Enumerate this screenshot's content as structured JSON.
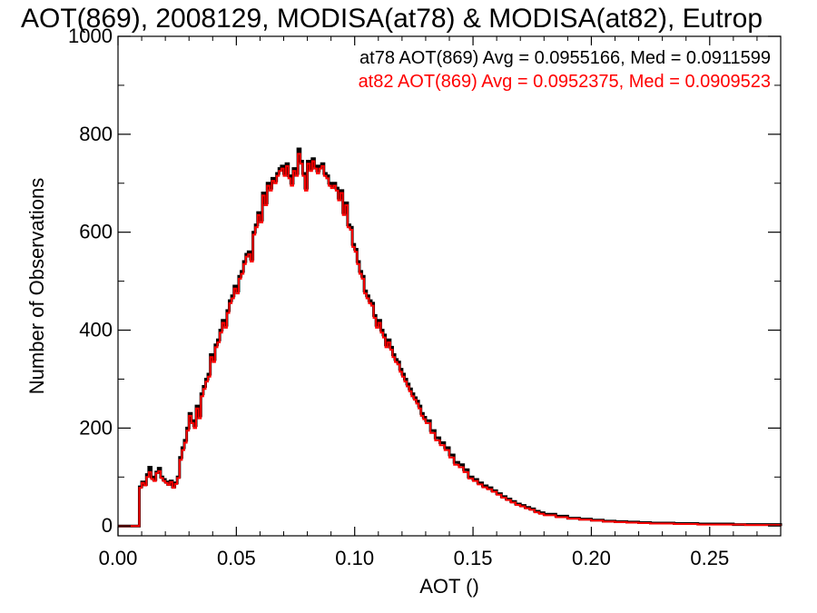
{
  "chart_data": {
    "type": "line",
    "step": true,
    "title": "AOT(869), 2008129, MODISA(at78) & MODISA(at82), Eutrop",
    "xlabel": "AOT ()",
    "ylabel": "Number of Observations",
    "xlim": [
      0.0,
      0.28
    ],
    "ylim": [
      -20,
      1000
    ],
    "xticks": [
      "0.00",
      "0.05",
      "0.10",
      "0.15",
      "0.20",
      "0.25"
    ],
    "yticks": [
      "0",
      "200",
      "400",
      "600",
      "800",
      "1000"
    ],
    "grid": false,
    "legend_position": "top-right",
    "legend": [
      "at78 AOT(869) Avg = 0.0955166, Med = 0.0911599",
      "at82 AOT(869) Avg = 0.0952375, Med = 0.0909523"
    ],
    "series": [
      {
        "color": "#000000",
        "x": [
          0.0,
          0.004,
          0.008,
          0.009,
          0.01,
          0.011,
          0.012,
          0.013,
          0.014,
          0.015,
          0.016,
          0.017,
          0.018,
          0.019,
          0.02,
          0.021,
          0.022,
          0.023,
          0.024,
          0.025,
          0.026,
          0.027,
          0.028,
          0.029,
          0.03,
          0.031,
          0.032,
          0.033,
          0.034,
          0.035,
          0.036,
          0.037,
          0.038,
          0.039,
          0.04,
          0.041,
          0.042,
          0.043,
          0.044,
          0.045,
          0.046,
          0.047,
          0.048,
          0.049,
          0.05,
          0.051,
          0.052,
          0.053,
          0.054,
          0.055,
          0.056,
          0.057,
          0.058,
          0.059,
          0.06,
          0.061,
          0.062,
          0.063,
          0.064,
          0.065,
          0.066,
          0.067,
          0.068,
          0.069,
          0.07,
          0.071,
          0.072,
          0.073,
          0.074,
          0.075,
          0.076,
          0.077,
          0.078,
          0.079,
          0.08,
          0.081,
          0.082,
          0.083,
          0.084,
          0.085,
          0.086,
          0.087,
          0.088,
          0.089,
          0.09,
          0.091,
          0.092,
          0.093,
          0.094,
          0.095,
          0.096,
          0.097,
          0.098,
          0.099,
          0.1,
          0.101,
          0.102,
          0.103,
          0.104,
          0.105,
          0.106,
          0.107,
          0.108,
          0.109,
          0.11,
          0.111,
          0.112,
          0.113,
          0.114,
          0.115,
          0.116,
          0.117,
          0.118,
          0.119,
          0.12,
          0.121,
          0.122,
          0.123,
          0.124,
          0.125,
          0.126,
          0.127,
          0.128,
          0.129,
          0.13,
          0.132,
          0.134,
          0.136,
          0.138,
          0.14,
          0.142,
          0.144,
          0.146,
          0.148,
          0.15,
          0.152,
          0.154,
          0.156,
          0.158,
          0.16,
          0.162,
          0.164,
          0.166,
          0.168,
          0.17,
          0.172,
          0.174,
          0.176,
          0.178,
          0.18,
          0.185,
          0.19,
          0.195,
          0.2,
          0.205,
          0.21,
          0.215,
          0.22,
          0.225,
          0.23,
          0.235,
          0.24,
          0.245,
          0.25,
          0.255,
          0.26,
          0.265,
          0.27,
          0.275,
          0.28
        ],
        "y": [
          0,
          0,
          0,
          80,
          90,
          85,
          105,
          120,
          100,
          95,
          110,
          118,
          100,
          95,
          90,
          85,
          92,
          80,
          88,
          100,
          140,
          160,
          175,
          200,
          230,
          215,
          205,
          245,
          225,
          270,
          285,
          300,
          310,
          350,
          340,
          370,
          380,
          400,
          420,
          410,
          440,
          460,
          470,
          490,
          480,
          510,
          520,
          540,
          555,
          560,
          545,
          600,
          615,
          640,
          625,
          680,
          660,
          700,
          690,
          710,
          705,
          720,
          730,
          735,
          720,
          740,
          715,
          700,
          730,
          720,
          770,
          745,
          720,
          690,
          745,
          730,
          750,
          735,
          725,
          735,
          740,
          720,
          715,
          700,
          695,
          700,
          690,
          670,
          685,
          640,
          660,
          615,
          610,
          575,
          565,
          540,
          520,
          510,
          480,
          470,
          460,
          455,
          430,
          410,
          420,
          400,
          390,
          370,
          380,
          365,
          350,
          340,
          335,
          320,
          310,
          300,
          290,
          280,
          270,
          262,
          255,
          245,
          230,
          222,
          215,
          195,
          180,
          170,
          160,
          145,
          130,
          125,
          115,
          100,
          95,
          88,
          82,
          78,
          72,
          66,
          60,
          55,
          50,
          45,
          42,
          38,
          35,
          30,
          27,
          24,
          20,
          16,
          14,
          12,
          10,
          9,
          8,
          7,
          6,
          6,
          5,
          5,
          4,
          4,
          4,
          3,
          3,
          3,
          3,
          0
        ]
      },
      {
        "color": "#ff0000",
        "x": [
          0.0,
          0.004,
          0.008,
          0.009,
          0.01,
          0.011,
          0.012,
          0.013,
          0.014,
          0.015,
          0.016,
          0.017,
          0.018,
          0.019,
          0.02,
          0.021,
          0.022,
          0.023,
          0.024,
          0.025,
          0.026,
          0.027,
          0.028,
          0.029,
          0.03,
          0.031,
          0.032,
          0.033,
          0.034,
          0.035,
          0.036,
          0.037,
          0.038,
          0.039,
          0.04,
          0.041,
          0.042,
          0.043,
          0.044,
          0.045,
          0.046,
          0.047,
          0.048,
          0.049,
          0.05,
          0.051,
          0.052,
          0.053,
          0.054,
          0.055,
          0.056,
          0.057,
          0.058,
          0.059,
          0.06,
          0.061,
          0.062,
          0.063,
          0.064,
          0.065,
          0.066,
          0.067,
          0.068,
          0.069,
          0.07,
          0.071,
          0.072,
          0.073,
          0.074,
          0.075,
          0.076,
          0.077,
          0.078,
          0.079,
          0.08,
          0.081,
          0.082,
          0.083,
          0.084,
          0.085,
          0.086,
          0.087,
          0.088,
          0.089,
          0.09,
          0.091,
          0.092,
          0.093,
          0.094,
          0.095,
          0.096,
          0.097,
          0.098,
          0.099,
          0.1,
          0.101,
          0.102,
          0.103,
          0.104,
          0.105,
          0.106,
          0.107,
          0.108,
          0.109,
          0.11,
          0.111,
          0.112,
          0.113,
          0.114,
          0.115,
          0.116,
          0.117,
          0.118,
          0.119,
          0.12,
          0.121,
          0.122,
          0.123,
          0.124,
          0.125,
          0.126,
          0.127,
          0.128,
          0.129,
          0.13,
          0.132,
          0.134,
          0.136,
          0.138,
          0.14,
          0.142,
          0.144,
          0.146,
          0.148,
          0.15,
          0.152,
          0.154,
          0.156,
          0.158,
          0.16,
          0.162,
          0.164,
          0.166,
          0.168,
          0.17,
          0.172,
          0.174,
          0.176,
          0.178,
          0.18,
          0.185,
          0.19,
          0.195,
          0.2,
          0.205,
          0.21,
          0.215,
          0.22,
          0.225,
          0.23,
          0.235,
          0.24,
          0.245,
          0.25,
          0.255,
          0.26,
          0.265,
          0.27,
          0.275,
          0.28
        ],
        "y": [
          0,
          0,
          0,
          78,
          88,
          83,
          100,
          110,
          96,
          92,
          108,
          112,
          98,
          92,
          88,
          84,
          90,
          78,
          86,
          98,
          135,
          155,
          170,
          195,
          225,
          210,
          200,
          240,
          220,
          265,
          280,
          295,
          305,
          345,
          335,
          365,
          375,
          395,
          415,
          405,
          435,
          455,
          465,
          485,
          475,
          505,
          515,
          535,
          550,
          555,
          540,
          595,
          610,
          635,
          620,
          675,
          655,
          695,
          685,
          705,
          700,
          715,
          725,
          730,
          715,
          735,
          710,
          695,
          725,
          715,
          760,
          740,
          715,
          685,
          740,
          725,
          745,
          730,
          720,
          730,
          735,
          715,
          710,
          695,
          690,
          695,
          685,
          665,
          680,
          635,
          655,
          610,
          605,
          570,
          560,
          535,
          515,
          505,
          475,
          465,
          455,
          450,
          425,
          405,
          415,
          395,
          385,
          365,
          375,
          360,
          345,
          335,
          330,
          315,
          305,
          295,
          285,
          275,
          265,
          258,
          250,
          240,
          225,
          218,
          210,
          190,
          175,
          165,
          155,
          140,
          125,
          120,
          110,
          97,
          92,
          85,
          79,
          75,
          70,
          64,
          58,
          53,
          48,
          43,
          40,
          36,
          33,
          28,
          25,
          22,
          18,
          15,
          13,
          11,
          9,
          8,
          7,
          6,
          5,
          5,
          4,
          4,
          3,
          3,
          3,
          3,
          2,
          2,
          2,
          0
        ]
      }
    ]
  }
}
